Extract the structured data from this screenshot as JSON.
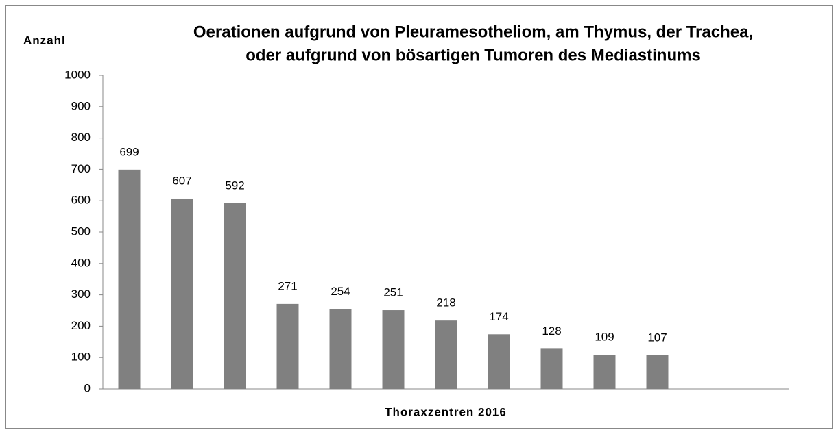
{
  "chart_data": {
    "type": "bar",
    "title": [
      "Oerationen aufgrund von Pleuramesotheliom, am Thymus, der Trachea,",
      "oder aufgrund von bösartigen Tumoren des Mediastinums"
    ],
    "y_axis_label": "Anzahl",
    "x_axis_label": "Thoraxzentren 2016",
    "categories": [
      null,
      null,
      null,
      null,
      null,
      null,
      null,
      null,
      null,
      null,
      null,
      null,
      null
    ],
    "values": [
      699,
      607,
      592,
      271,
      254,
      251,
      218,
      174,
      128,
      109,
      107,
      null,
      null
    ],
    "color": "#808080",
    "ylim": [
      0,
      1000
    ],
    "yticks": [
      0,
      100,
      200,
      300,
      400,
      500,
      600,
      700,
      800,
      900,
      1000
    ],
    "grid": false
  }
}
